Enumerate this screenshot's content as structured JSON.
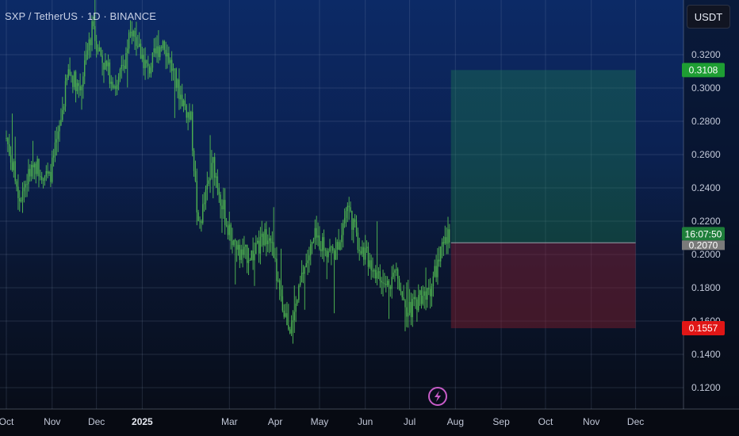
{
  "header": {
    "title": "SXP / TetherUS · 1D · BINANCE",
    "currency": "USDT"
  },
  "colors": {
    "candle_up": "#4caf50",
    "profit_zone": "#1e8e4e",
    "loss_zone": "#8e1e2e",
    "profit_badge": "#1e9e33",
    "loss_badge": "#e01616",
    "current_badge": "#1e7e3a",
    "entry_badge": "#7a7a7a"
  },
  "chart_data": {
    "type": "candlestick",
    "ylim": [
      0.11,
      0.335
    ],
    "y_ticks": [
      "0.3200",
      "0.3000",
      "0.2800",
      "0.2600",
      "0.2400",
      "0.2200",
      "0.2000",
      "0.1800",
      "0.1600",
      "0.1400",
      "0.1200"
    ],
    "x_ticks": [
      "Oct",
      "Nov",
      "Dec",
      "2025",
      "Mar",
      "Apr",
      "May",
      "Jun",
      "Jul",
      "Aug",
      "Sep",
      "Oct",
      "Nov",
      "Dec"
    ],
    "bold_x_tick": "2025",
    "price_path": [
      [
        "2024-10-01",
        0.27
      ],
      [
        "2024-10-10",
        0.235
      ],
      [
        "2024-10-20",
        0.255
      ],
      [
        "2024-10-30",
        0.245
      ],
      [
        "2024-11-05",
        0.27
      ],
      [
        "2024-11-12",
        0.31
      ],
      [
        "2024-11-20",
        0.3
      ],
      [
        "2024-11-28",
        0.335
      ],
      [
        "2024-12-06",
        0.315
      ],
      [
        "2024-12-15",
        0.3
      ],
      [
        "2024-12-25",
        0.335
      ],
      [
        "2025-01-05",
        0.31
      ],
      [
        "2025-01-15",
        0.33
      ],
      [
        "2025-01-25",
        0.3
      ],
      [
        "2025-02-03",
        0.28
      ],
      [
        "2025-02-08",
        0.215
      ],
      [
        "2025-02-18",
        0.255
      ],
      [
        "2025-02-28",
        0.215
      ],
      [
        "2025-03-08",
        0.2
      ],
      [
        "2025-03-18",
        0.2
      ],
      [
        "2025-03-28",
        0.215
      ],
      [
        "2025-04-05",
        0.17
      ],
      [
        "2025-04-12",
        0.155
      ],
      [
        "2025-04-20",
        0.19
      ],
      [
        "2025-04-28",
        0.21
      ],
      [
        "2025-05-05",
        0.205
      ],
      [
        "2025-05-12",
        0.2
      ],
      [
        "2025-05-20",
        0.23
      ],
      [
        "2025-05-28",
        0.205
      ],
      [
        "2025-06-05",
        0.195
      ],
      [
        "2025-06-14",
        0.18
      ],
      [
        "2025-06-22",
        0.19
      ],
      [
        "2025-06-30",
        0.165
      ],
      [
        "2025-07-08",
        0.175
      ],
      [
        "2025-07-15",
        0.18
      ],
      [
        "2025-07-22",
        0.2
      ],
      [
        "2025-07-28",
        0.212
      ]
    ],
    "position": {
      "start_date": "2025-07-29",
      "end_date": "2025-12-01",
      "target": 0.3108,
      "entry": 0.207,
      "stop": 0.1557
    },
    "badges": {
      "target": "0.3108",
      "stop": "0.1557",
      "current_time": "16:07:50",
      "entry": "0.2070"
    }
  }
}
